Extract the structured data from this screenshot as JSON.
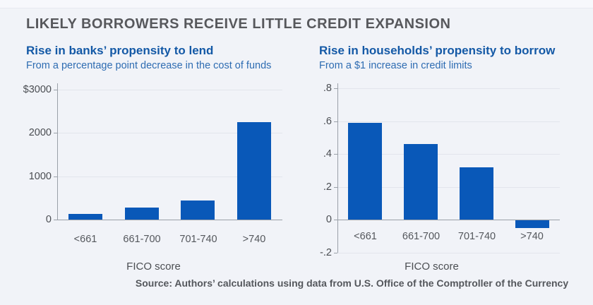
{
  "header": {
    "title": "LIKELY BORROWERS RECEIVE LITTLE CREDIT EXPANSION"
  },
  "footer": {
    "source": "Source: Authors’ calculations using data from U.S. Office of the Comptroller of the Currency"
  },
  "colors": {
    "bar": "#0958b8",
    "heading_blue": "#1459a6",
    "subtitle_blue": "#2e6cb2",
    "title_gray": "#57585c",
    "axis_gray": "#9aa0a8",
    "gridline_gray": "#e2e5ec",
    "background": "#f1f3f8"
  },
  "chart_data": [
    {
      "type": "bar",
      "title": "Rise in banks’ propensity to lend",
      "subtitle": "From a percentage point decrease in the cost of funds",
      "categories": [
        "<661",
        "661-700",
        "701-740",
        ">740"
      ],
      "values": [
        130,
        270,
        440,
        2250
      ],
      "xlabel": "FICO score",
      "ylim": [
        0,
        3000
      ],
      "yticks": [
        {
          "value": 0,
          "label": "0"
        },
        {
          "value": 1000,
          "label": "1000"
        },
        {
          "value": 2000,
          "label": "2000"
        },
        {
          "value": 3000,
          "label": "$3000"
        }
      ],
      "grid": true,
      "legend": false
    },
    {
      "type": "bar",
      "title": "Rise in households’ propensity to borrow",
      "subtitle": "From a $1 increase in credit limits",
      "categories": [
        "<661",
        "661-700",
        "701-740",
        ">740"
      ],
      "values": [
        0.59,
        0.46,
        0.32,
        -0.05
      ],
      "xlabel": "FICO score",
      "ylim": [
        -0.2,
        0.8
      ],
      "yticks": [
        {
          "value": -0.2,
          "label": "-.2"
        },
        {
          "value": 0,
          "label": "0"
        },
        {
          "value": 0.2,
          "label": ".2"
        },
        {
          "value": 0.4,
          "label": ".4"
        },
        {
          "value": 0.6,
          "label": ".6"
        },
        {
          "value": 0.8,
          "label": ".8"
        }
      ],
      "grid": true,
      "legend": false
    }
  ]
}
